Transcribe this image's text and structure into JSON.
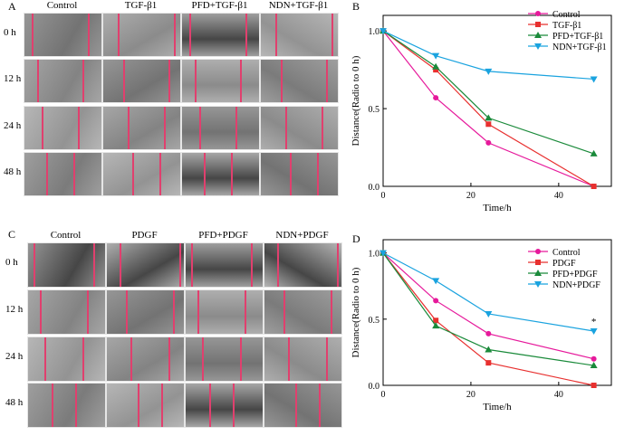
{
  "figure": {
    "panel_a": {
      "letter": "A",
      "columns": [
        "Control",
        "TGF-β1",
        "PFD+TGF-β1",
        "NDN+TGF-β1"
      ],
      "rows": [
        "0 h",
        "12 h",
        "24 h",
        "48 h"
      ]
    },
    "panel_c": {
      "letter": "C",
      "columns": [
        "Control",
        "PDGF",
        "PFD+PDGF",
        "NDN+PDGF"
      ],
      "rows": [
        "0 h",
        "12 h",
        "24 h",
        "48 h"
      ]
    }
  },
  "chart_data": [
    {
      "panel": "B",
      "type": "line",
      "xlabel": "Time/h",
      "ylabel": "Distance(Radio to 0 h)",
      "xlim": [
        0,
        52
      ],
      "ylim": [
        0,
        1.1
      ],
      "xticks": [
        0,
        20,
        40
      ],
      "yticks": [
        0.0,
        0.5,
        1.0
      ],
      "x": [
        0,
        12,
        24,
        48
      ],
      "legend_position": "top-right",
      "annotation": "",
      "series": [
        {
          "name": "Control",
          "color": "#e6199b",
          "marker": "circle",
          "values": [
            1.0,
            0.57,
            0.28,
            0.0
          ]
        },
        {
          "name": "TGF-β1",
          "color": "#e8302f",
          "marker": "square",
          "values": [
            1.0,
            0.75,
            0.4,
            0.0
          ]
        },
        {
          "name": "PFD+TGF-β1",
          "color": "#1a8a3a",
          "marker": "triangle-up",
          "values": [
            1.0,
            0.77,
            0.44,
            0.21
          ]
        },
        {
          "name": "NDN+TGF-β1",
          "color": "#1aa3df",
          "marker": "triangle-down",
          "values": [
            1.0,
            0.84,
            0.74,
            0.69
          ]
        }
      ]
    },
    {
      "panel": "D",
      "type": "line",
      "xlabel": "Time/h",
      "ylabel": "Distance(Radio to 0 h)",
      "xlim": [
        0,
        52
      ],
      "ylim": [
        0,
        1.1
      ],
      "xticks": [
        0,
        20,
        40
      ],
      "yticks": [
        0.0,
        0.5,
        1.0
      ],
      "x": [
        0,
        12,
        24,
        48
      ],
      "legend_position": "top-right",
      "annotation": "*",
      "series": [
        {
          "name": "Control",
          "color": "#e6199b",
          "marker": "circle",
          "values": [
            1.0,
            0.64,
            0.39,
            0.2
          ]
        },
        {
          "name": "PDGF",
          "color": "#e8302f",
          "marker": "square",
          "values": [
            1.0,
            0.49,
            0.17,
            0.0
          ]
        },
        {
          "name": "PFD+PDGF",
          "color": "#1a8a3a",
          "marker": "triangle-up",
          "values": [
            1.0,
            0.45,
            0.27,
            0.15
          ]
        },
        {
          "name": "NDN+PDGF",
          "color": "#1aa3df",
          "marker": "triangle-down",
          "values": [
            1.0,
            0.79,
            0.54,
            0.41
          ]
        }
      ]
    }
  ]
}
